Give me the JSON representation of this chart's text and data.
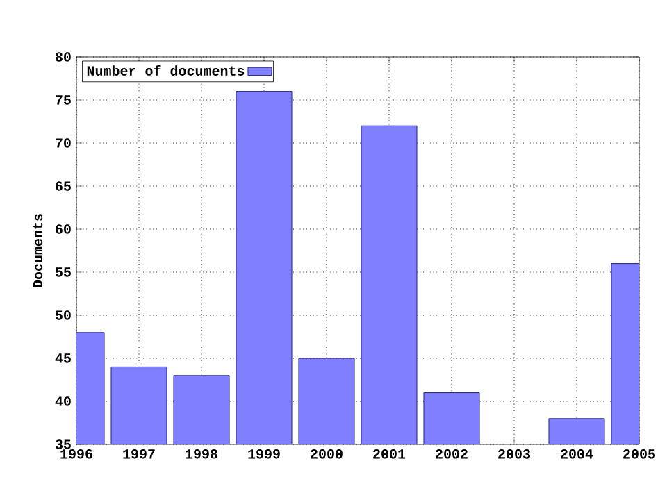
{
  "chart_data": {
    "type": "bar",
    "ylabel": "Documents",
    "x": [
      1996,
      1997,
      1998,
      1999,
      2000,
      2001,
      2002,
      2003,
      2004,
      2005
    ],
    "series": [
      {
        "name": "Number of documents",
        "color": "#7f7fff",
        "values": [
          48,
          44,
          43,
          76,
          45,
          72,
          41,
          null,
          38,
          56
        ]
      }
    ],
    "xlim": [
      1996,
      2005
    ],
    "xticks": [
      1996,
      1997,
      1998,
      1999,
      2000,
      2001,
      2002,
      2003,
      2004,
      2005
    ],
    "ylim": [
      35,
      80
    ],
    "yticks": [
      35,
      40,
      45,
      50,
      55,
      60,
      65,
      70,
      75,
      80
    ],
    "grid": true,
    "legend": "top left"
  }
}
